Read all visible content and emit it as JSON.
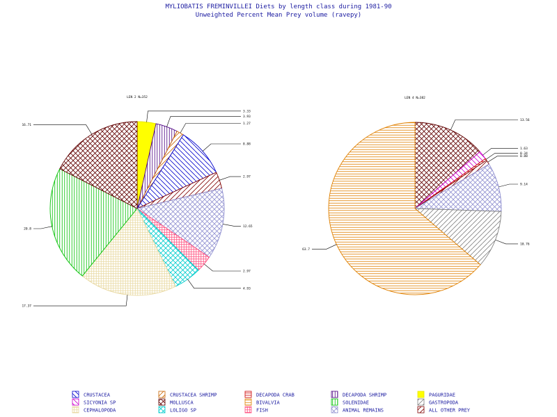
{
  "chart_data": {
    "type": "pie",
    "title": "MYLIOBATIS FREMINVILLEI Diets by length class during 1981-90",
    "subtitle": "Unweighted Percent Mean Prey volume (ravepy)",
    "categories": [
      {
        "name": "CRUSTACEA",
        "color": "#0000cc",
        "pattern": "hatch-down"
      },
      {
        "name": "CRUSTACEA SHRIMP",
        "color": "#c86400",
        "pattern": "hatch-up"
      },
      {
        "name": "DECAPODA CRAB",
        "color": "#cc0000",
        "pattern": "horiz"
      },
      {
        "name": "DECAPODA SHRIMP",
        "color": "#4b0082",
        "pattern": "vert"
      },
      {
        "name": "PAGURIDAE",
        "color": "#ffff00",
        "pattern": "solid"
      },
      {
        "name": "SICYONIA SP",
        "color": "#cc00cc",
        "pattern": "hatch-down"
      },
      {
        "name": "MOLLUSCA",
        "color": "#600000",
        "pattern": "cross-diag"
      },
      {
        "name": "BIVALVIA",
        "color": "#e08000",
        "pattern": "horiz"
      },
      {
        "name": "SOLENIDAE",
        "color": "#00c000",
        "pattern": "vert"
      },
      {
        "name": "GASTROPODA",
        "color": "#808080",
        "pattern": "hatch-up"
      },
      {
        "name": "CEPHALOPODA",
        "color": "#e8d8a0",
        "pattern": "grid"
      },
      {
        "name": "LOLIGO SP",
        "color": "#00cccc",
        "pattern": "cross-diag"
      },
      {
        "name": "FISH",
        "color": "#ff5080",
        "pattern": "grid"
      },
      {
        "name": "ANIMAL REMAINS",
        "color": "#9090d0",
        "pattern": "cross-diag"
      },
      {
        "name": "ALL OTHER PREY",
        "color": "#800000",
        "pattern": "hatch-up"
      }
    ],
    "pies": [
      {
        "label": "LEN 2 N=352",
        "slices": [
          {
            "category": "PAGURIDAE",
            "value": 3.33,
            "label": "3.33"
          },
          {
            "category": "DECAPODA SHRIMP",
            "value": 3.93,
            "label": "3.93"
          },
          {
            "category": "CRUSTACEA SHRIMP",
            "value": 1.27,
            "label": "1.27"
          },
          {
            "category": "CRUSTACEA",
            "value": 8.88,
            "label": "8.88"
          },
          {
            "category": "ALL OTHER PREY",
            "value": 2.97,
            "label": "2.97"
          },
          {
            "category": "ANIMAL REMAINS",
            "value": 12.65,
            "label": "12.65"
          },
          {
            "category": "FISH",
            "value": 2.97,
            "label": "2.97"
          },
          {
            "category": "LOLIGO SP",
            "value": 4.93,
            "label": "4.93"
          },
          {
            "category": "CEPHALOPODA",
            "value": 17.37,
            "label": "17.37"
          },
          {
            "category": "SOLENIDAE",
            "value": 20.8,
            "label": "20.8"
          },
          {
            "category": "MOLLUSCA",
            "value": 16.71,
            "label": "16.71"
          }
        ]
      },
      {
        "label": "LEN 4 N=382",
        "slices": [
          {
            "category": "MOLLUSCA",
            "value": 13.56,
            "label": "13.56"
          },
          {
            "category": "SICYONIA SP",
            "value": 1.63,
            "label": "1.63"
          },
          {
            "category": "DECAPODA CRAB",
            "value": 0.34,
            "label": "0.34"
          },
          {
            "category": "ALL OTHER PREY",
            "value": 0.88,
            "label": "0.88"
          },
          {
            "category": "ANIMAL REMAINS",
            "value": 9.14,
            "label": "9.14"
          },
          {
            "category": "GASTROPODA",
            "value": 10.76,
            "label": "10.76"
          },
          {
            "category": "BIVALVIA",
            "value": 63.7,
            "label": "63.7"
          }
        ]
      }
    ]
  }
}
